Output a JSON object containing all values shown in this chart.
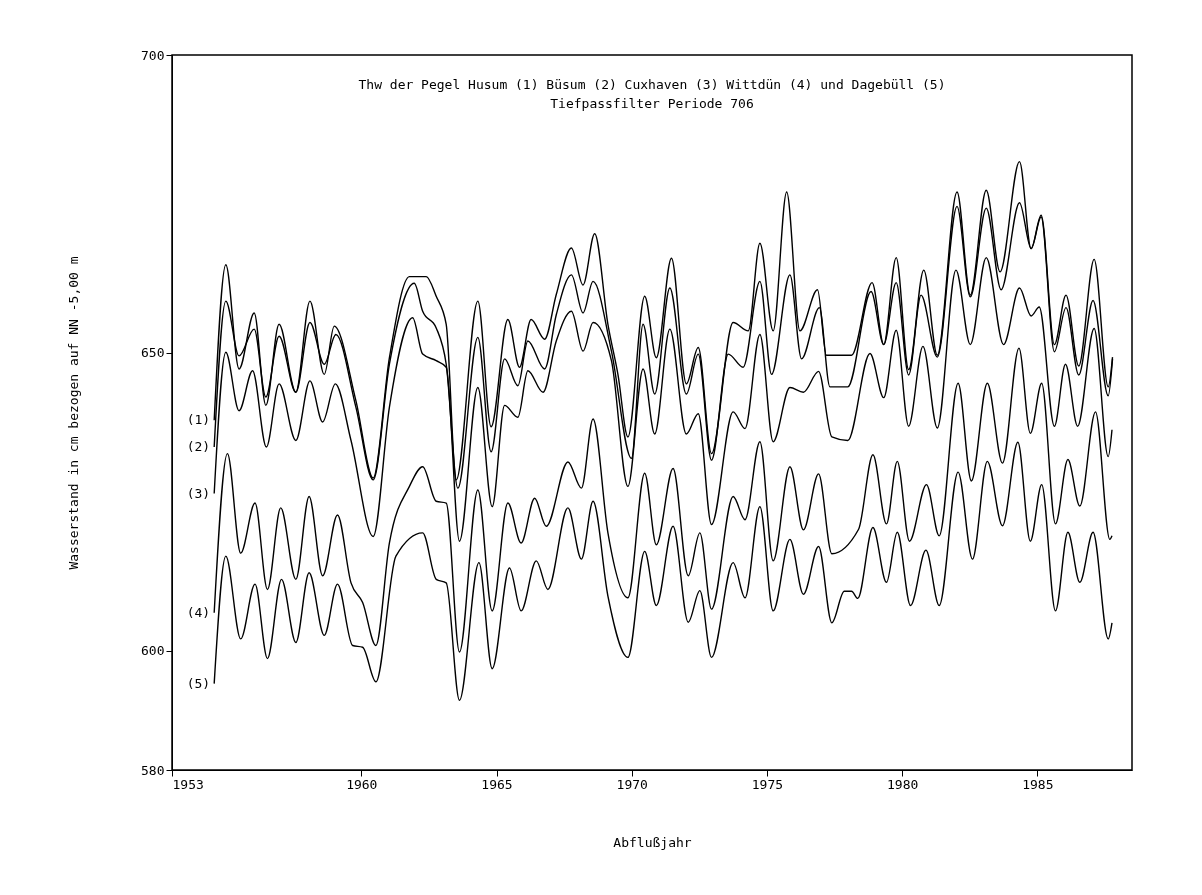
{
  "chart_data": {
    "type": "line",
    "title": "Thw der Pegel Husum (1) Büsum (2) Cuxhaven (3) Wittdün (4) und Dagebüll (5)",
    "subtitle": "Tiefpassfilter Periode 706",
    "xlabel": "Abflußjahr",
    "ylabel": "Wasserstand in cm bezogen auf NN -5,00 m",
    "xlim": [
      1953,
      1988.5
    ],
    "xticks": [
      1953,
      1960,
      1965,
      1970,
      1975,
      1980,
      1985
    ],
    "ylim": [
      580,
      700
    ],
    "yticks": [
      580,
      600,
      650,
      700
    ],
    "grid": false,
    "legend": false,
    "marker": "none",
    "line_style": "solid",
    "series": [
      {
        "name": "(1)",
        "color": "#000000",
        "x": [
          1954.56,
          1954.99,
          1955.48,
          1956.04,
          1956.47,
          1956.96,
          1957.58,
          1958.1,
          1958.63,
          1959.0,
          1959.8,
          1960.44,
          1961.04,
          1961.78,
          1962.4,
          1962.77,
          1963.14,
          1963.51,
          1964.31,
          1964.8,
          1965.42,
          1965.85,
          1966.28,
          1966.78,
          1967.21,
          1967.77,
          1968.2,
          1968.63,
          1969.12,
          1969.49,
          1969.86,
          1970.48,
          1970.91,
          1971.47,
          1972.02,
          1972.46,
          1972.95,
          1973.75,
          1974.31,
          1974.74,
          1975.23,
          1975.73,
          1976.22,
          1976.87,
          1977.2,
          1978.13,
          1978.89,
          1979.32,
          1979.78,
          1980.24,
          1980.8,
          1981.3,
          1982.03,
          1982.52,
          1983.11,
          1983.62,
          1984.34,
          1984.77,
          1985.14,
          1985.63,
          1986.06,
          1986.53,
          1987.1,
          1987.62,
          1987.78
        ],
        "values": [
          638.7,
          664.8,
          647.3,
          656.7,
          641.2,
          654.8,
          643.4,
          658.7,
          646.4,
          654.5,
          642,
          629,
          649.2,
          662.8,
          662.8,
          659.5,
          654.8,
          628.7,
          658.7,
          637.6,
          655.6,
          647.6,
          655.6,
          652.3,
          659.8,
          667.6,
          661.4,
          670,
          654.8,
          646.4,
          635.9,
          659.5,
          649.2,
          665.9,
          644.8,
          650.9,
          633.1,
          655.1,
          653.7,
          668.4,
          653.7,
          677,
          653.7,
          660.6,
          649.6,
          649.6,
          661.8,
          651.4,
          666,
          647.2,
          663.9,
          649.6,
          677,
          659.7,
          677.3,
          663.6,
          682.1,
          667.5,
          673.1,
          651.4,
          659.7,
          647.8,
          665.7,
          644.3,
          649.3
        ]
      },
      {
        "name": "(2)",
        "color": "#000000",
        "x": [
          1954.56,
          1954.99,
          1955.48,
          1956.04,
          1956.47,
          1956.96,
          1957.58,
          1958.1,
          1958.63,
          1959.06,
          1959.8,
          1960.44,
          1961.04,
          1961.96,
          1962.27,
          1962.77,
          1963.14,
          1963.57,
          1964.31,
          1964.8,
          1965.3,
          1965.79,
          1966.16,
          1966.78,
          1967.21,
          1967.77,
          1968.2,
          1968.57,
          1969.25,
          1969.99,
          1970.42,
          1970.85,
          1971.41,
          1972.02,
          1972.46,
          1972.95,
          1973.57,
          1974.12,
          1974.74,
          1975.17,
          1975.85,
          1976.28,
          1976.94,
          1977.33,
          1977.99,
          1978.85,
          1979.32,
          1979.78,
          1980.24,
          1980.7,
          1981.3,
          1982.03,
          1982.52,
          1983.11,
          1983.66,
          1984.34,
          1984.77,
          1985.14,
          1985.63,
          1986.06,
          1986.53,
          1987.06,
          1987.62,
          1987.78
        ],
        "values": [
          634.2,
          658.7,
          649.5,
          654,
          642.6,
          652.8,
          643.4,
          655.1,
          648.1,
          653.1,
          640.9,
          628.7,
          648.1,
          661.7,
          657,
          654.2,
          648.1,
          627.3,
          652.6,
          633.4,
          649,
          644.5,
          652,
          647.3,
          656.4,
          663.1,
          656.7,
          662,
          650.3,
          632.3,
          654.8,
          643.1,
          660.9,
          643.1,
          649.8,
          632,
          649.8,
          647.6,
          662,
          646.4,
          663.1,
          649,
          657.6,
          644.3,
          644.3,
          660.3,
          651.4,
          661.8,
          646.3,
          659.7,
          649.3,
          674.6,
          659.4,
          674.3,
          660.6,
          675.2,
          667.5,
          672.8,
          650.2,
          657.6,
          646.3,
          658.8,
          642.8,
          649
        ]
      },
      {
        "name": "(3)",
        "color": "#000000",
        "x": [
          1954.56,
          1954.99,
          1955.48,
          1955.98,
          1956.49,
          1956.96,
          1957.58,
          1958.1,
          1958.57,
          1959.04,
          1959.62,
          1960.44,
          1961.04,
          1961.9,
          1962.27,
          1962.77,
          1963.14,
          1963.63,
          1964.31,
          1964.84,
          1965.3,
          1965.79,
          1966.16,
          1966.72,
          1967.21,
          1967.77,
          1968.2,
          1968.57,
          1969.25,
          1969.86,
          1970.42,
          1970.85,
          1971.41,
          1972.02,
          1972.46,
          1972.95,
          1973.75,
          1974.19,
          1974.74,
          1975.23,
          1975.85,
          1976.35,
          1976.91,
          1977.4,
          1977.99,
          1978.81,
          1979.32,
          1979.78,
          1980.24,
          1980.77,
          1981.3,
          1981.99,
          1982.52,
          1983.11,
          1983.75,
          1984.34,
          1984.77,
          1985.07,
          1985.63,
          1986.04,
          1986.49,
          1987.1,
          1987.62,
          1987.76
        ],
        "values": [
          626.4,
          650.1,
          640.3,
          647,
          634.2,
          644.8,
          635.3,
          645.3,
          638.4,
          644.8,
          635.3,
          619.2,
          640.9,
          655.9,
          649.8,
          648.7,
          647.6,
          618.4,
          644.2,
          624.2,
          641.2,
          639.2,
          647,
          643.4,
          652,
          657,
          650.3,
          655.1,
          648.7,
          627.6,
          647.3,
          636.4,
          654,
          636.4,
          639.8,
          621.2,
          640.1,
          637.3,
          653.1,
          635.1,
          644.2,
          643.4,
          646.9,
          635.9,
          635.3,
          649.9,
          642.5,
          653.8,
          637.7,
          651.1,
          637.4,
          663.9,
          651.4,
          666,
          651.4,
          660.9,
          656.2,
          657.7,
          637.7,
          648.1,
          637.7,
          654.1,
          632.6,
          637.1
        ]
      },
      {
        "name": "(4)",
        "color": "#000000",
        "x": [
          1954.56,
          1955.05,
          1955.54,
          1956.07,
          1956.53,
          1957.02,
          1957.58,
          1958.07,
          1958.57,
          1959.12,
          1959.62,
          1960.05,
          1960.54,
          1961.04,
          1961.78,
          1962.27,
          1962.77,
          1963.14,
          1963.63,
          1964.31,
          1964.84,
          1965.42,
          1965.91,
          1966.41,
          1966.84,
          1967.64,
          1968.14,
          1968.57,
          1969.12,
          1969.86,
          1970.48,
          1970.91,
          1971.53,
          1972.09,
          1972.52,
          1972.95,
          1973.75,
          1974.19,
          1974.74,
          1975.23,
          1975.85,
          1976.35,
          1976.91,
          1977.4,
          1978.39,
          1978.92,
          1979.42,
          1979.82,
          1980.27,
          1980.9,
          1981.37,
          1982.07,
          1982.56,
          1983.15,
          1983.71,
          1984.32,
          1984.74,
          1985.16,
          1985.67,
          1986.13,
          1986.57,
          1987.15,
          1987.68,
          1987.76
        ],
        "values": [
          606.4,
          633.1,
          616.4,
          624.8,
          610.3,
          624,
          612,
          625.9,
          612.6,
          622.8,
          611.4,
          608.1,
          600.9,
          618.1,
          627.6,
          630.9,
          625.1,
          624.8,
          599.8,
          627,
          606.7,
          624.8,
          618.1,
          625.6,
          620.9,
          631.7,
          627.3,
          638.9,
          619.8,
          608.9,
          629.8,
          617.8,
          630.6,
          612.6,
          619.8,
          607,
          625.9,
          622,
          635.1,
          615.1,
          630.9,
          620.3,
          629.7,
          616.3,
          620.4,
          632.9,
          621.3,
          631.8,
          618.4,
          627.9,
          619.3,
          644.9,
          628.5,
          644.9,
          631.5,
          650.8,
          636.5,
          644.9,
          621.3,
          632.1,
          624.3,
          640.1,
          618.7,
          619.3
        ]
      },
      {
        "name": "(5)",
        "color": "#000000",
        "x": [
          1954.56,
          1954.99,
          1955.54,
          1956.07,
          1956.53,
          1957.05,
          1957.58,
          1958.07,
          1958.63,
          1959.12,
          1959.68,
          1960.05,
          1960.54,
          1961.28,
          1962.27,
          1962.77,
          1963.14,
          1963.63,
          1964.35,
          1964.84,
          1965.48,
          1965.91,
          1966.47,
          1966.9,
          1967.64,
          1968.14,
          1968.57,
          1969.12,
          1969.86,
          1970.48,
          1970.91,
          1971.53,
          1972.09,
          1972.52,
          1972.95,
          1973.75,
          1974.19,
          1974.74,
          1975.23,
          1975.85,
          1976.35,
          1976.91,
          1977.4,
          1977.86,
          1978.13,
          1978.36,
          1978.92,
          1979.42,
          1979.82,
          1980.31,
          1980.88,
          1981.37,
          1982.07,
          1982.6,
          1983.15,
          1983.71,
          1984.28,
          1984.74,
          1985.16,
          1985.67,
          1986.13,
          1986.57,
          1987.06,
          1987.62,
          1987.76
        ],
        "values": [
          594.5,
          615.9,
          602,
          611.2,
          598.7,
          612,
          601.4,
          613.1,
          602.6,
          611.2,
          600.9,
          600.6,
          594.8,
          615.9,
          619.8,
          612,
          611.4,
          591.7,
          614.8,
          597,
          613.9,
          606.7,
          615.1,
          610.3,
          624,
          615.4,
          625.1,
          609.2,
          598.9,
          616.7,
          607.6,
          620.9,
          604.8,
          610.1,
          598.9,
          614.8,
          608.9,
          624.2,
          606.7,
          618.7,
          609.5,
          617.5,
          604.7,
          610,
          610,
          608.8,
          620.7,
          611.5,
          619.9,
          607.6,
          616.9,
          607.6,
          630,
          615.4,
          631.8,
          621,
          635,
          618.4,
          627.9,
          606.7,
          619.9,
          611.5,
          619.9,
          602,
          604.7
        ]
      }
    ]
  }
}
